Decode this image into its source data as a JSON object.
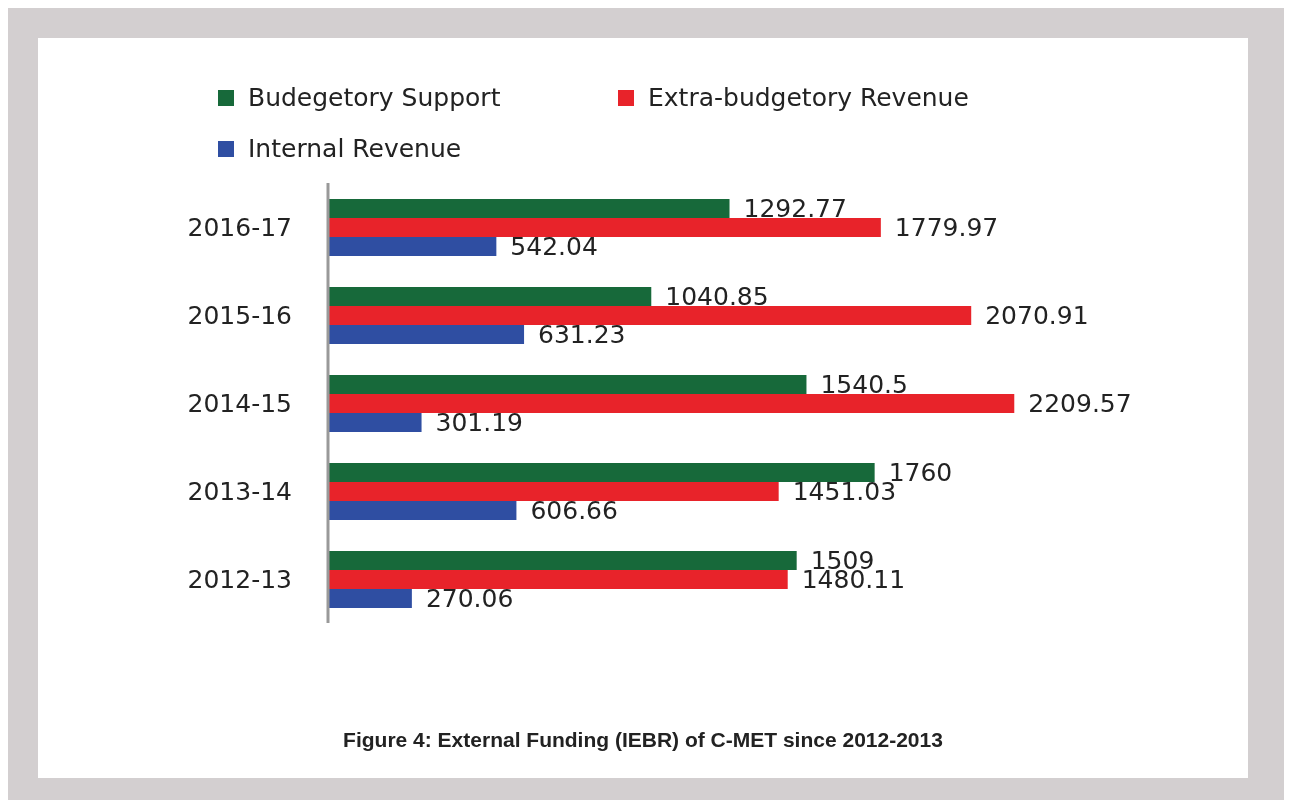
{
  "chart_data": {
    "type": "bar",
    "orientation": "horizontal",
    "title": "Figure 4: External Funding (IEBR) of C-MET since 2012-2013",
    "categories": [
      "2016-17",
      "2015-16",
      "2014-15",
      "2013-14",
      "2012-13"
    ],
    "series": [
      {
        "name": "Budegetory Support",
        "color": "#17693a",
        "values": [
          1292.77,
          1040.85,
          1540.5,
          1760,
          1509
        ]
      },
      {
        "name": "Extra-budgetory Revenue",
        "color": "#e8232a",
        "values": [
          1779.97,
          2070.91,
          2209.57,
          1451.03,
          1480.11
        ]
      },
      {
        "name": "Internal Revenue",
        "color": "#2f4ea2",
        "values": [
          542.04,
          631.23,
          301.19,
          606.66,
          270.06
        ]
      }
    ],
    "data_labels": true,
    "legend": "top",
    "grid": false
  }
}
